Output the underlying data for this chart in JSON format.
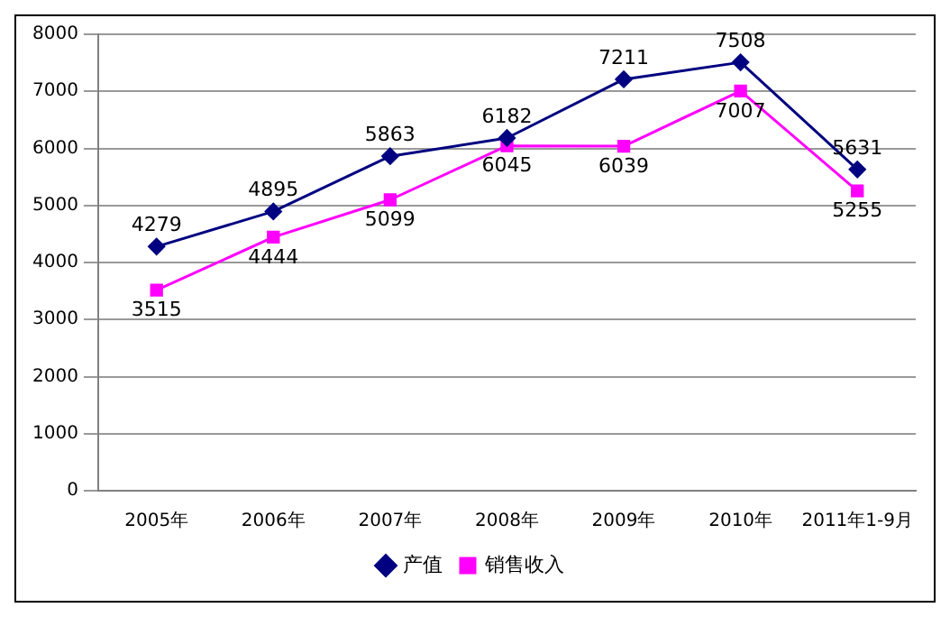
{
  "chart_data": {
    "type": "line",
    "categories": [
      "2005年",
      "2006年",
      "2007年",
      "2008年",
      "2009年",
      "2010年",
      "2011年1-9月"
    ],
    "series": [
      {
        "name": "产值",
        "color": "#000080",
        "marker": "diamond",
        "values": [
          4279,
          4895,
          5863,
          6182,
          7211,
          7508,
          5631
        ]
      },
      {
        "name": "销售收入",
        "color": "#ff00ff",
        "marker": "square",
        "values": [
          3515,
          4444,
          5099,
          6045,
          6039,
          7007,
          5255
        ]
      }
    ],
    "ylim": [
      0,
      8000
    ],
    "yticks": [
      0,
      1000,
      2000,
      3000,
      4000,
      5000,
      6000,
      7000,
      8000
    ],
    "grid": "y",
    "legend": "bottom",
    "data_labels": true,
    "line_style": "solid"
  }
}
